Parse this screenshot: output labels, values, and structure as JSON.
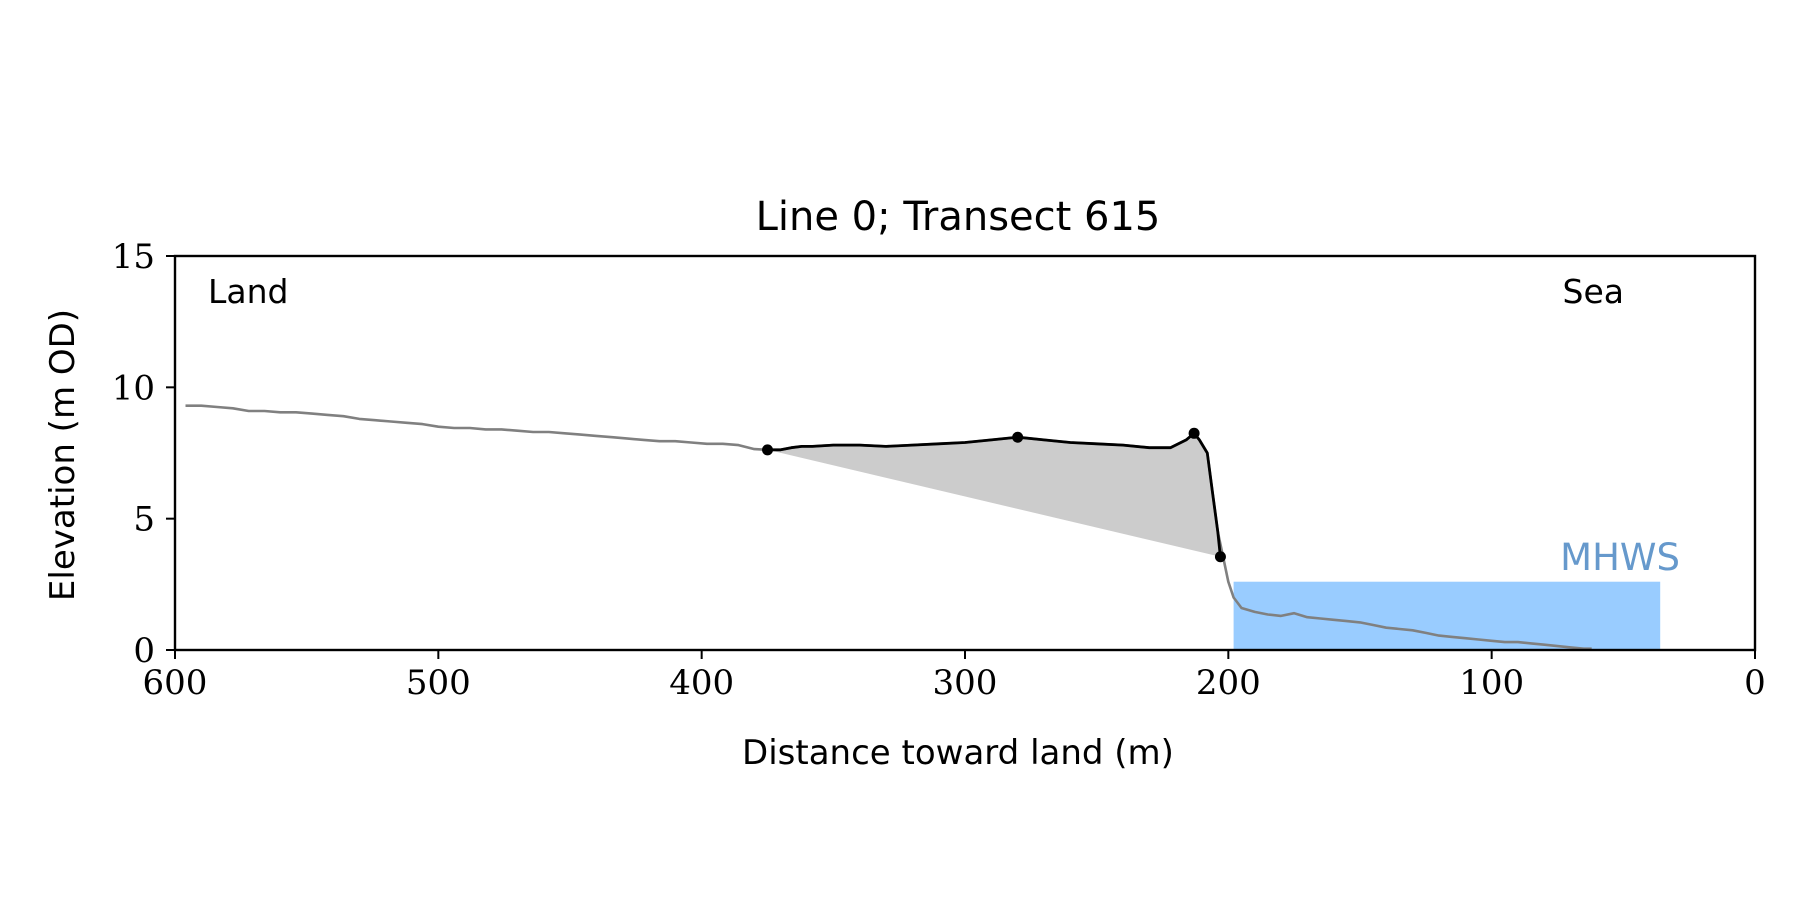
{
  "chart_data": {
    "type": "line",
    "title": "Line 0; Transect 615",
    "xlabel": "Distance toward land (m)",
    "ylabel": "Elevation (m OD)",
    "xlim": [
      600,
      0
    ],
    "ylim": [
      0,
      15
    ],
    "xticks": [
      600,
      500,
      400,
      300,
      200,
      100,
      0
    ],
    "yticks": [
      0,
      5,
      10,
      15
    ],
    "grid": false,
    "annotations": {
      "land": "Land",
      "sea": "Sea",
      "mhws": "MHWS"
    },
    "mhws": {
      "elevation": 2.6,
      "x_from": 198,
      "x_to": 36
    },
    "colors": {
      "profile": "#808080",
      "dune": "#000000",
      "dune_fill": "#cccccc",
      "mhws_fill": "#99ccff",
      "mhws_label": "#6699cc"
    },
    "series": [
      {
        "role": "full-profile",
        "x": [
          596,
          590,
          584,
          578,
          572,
          566,
          560,
          554,
          548,
          542,
          536,
          530,
          524,
          518,
          512,
          506,
          500,
          494,
          488,
          482,
          476,
          470,
          464,
          458,
          452,
          446,
          440,
          434,
          428,
          422,
          416,
          410,
          404,
          398,
          392,
          386,
          380,
          375,
          370,
          366,
          362,
          358,
          350,
          340,
          330,
          320,
          310,
          300,
          290,
          280,
          270,
          260,
          250,
          240,
          230,
          222,
          216,
          213,
          211,
          208,
          206,
          204,
          202,
          200,
          198,
          195,
          190,
          185,
          180,
          175,
          170,
          165,
          160,
          155,
          150,
          145,
          140,
          135,
          130,
          125,
          120,
          115,
          110,
          105,
          100,
          95,
          90,
          85,
          80,
          75,
          70,
          65,
          62
        ],
        "y": [
          9.3,
          9.3,
          9.25,
          9.2,
          9.1,
          9.1,
          9.05,
          9.05,
          9.0,
          8.95,
          8.9,
          8.8,
          8.75,
          8.7,
          8.65,
          8.6,
          8.5,
          8.45,
          8.45,
          8.4,
          8.4,
          8.35,
          8.3,
          8.3,
          8.25,
          8.2,
          8.15,
          8.1,
          8.05,
          8.0,
          7.95,
          7.95,
          7.9,
          7.85,
          7.85,
          7.8,
          7.65,
          7.62,
          7.62,
          7.7,
          7.75,
          7.75,
          7.8,
          7.8,
          7.75,
          7.8,
          7.85,
          7.9,
          8.0,
          8.1,
          8.0,
          7.9,
          7.85,
          7.8,
          7.7,
          7.7,
          8.0,
          8.25,
          8.0,
          7.5,
          6.0,
          4.5,
          3.55,
          2.6,
          2.0,
          1.6,
          1.45,
          1.35,
          1.3,
          1.4,
          1.25,
          1.2,
          1.15,
          1.1,
          1.05,
          0.95,
          0.85,
          0.8,
          0.75,
          0.65,
          0.55,
          0.5,
          0.45,
          0.4,
          0.35,
          0.3,
          0.3,
          0.25,
          0.2,
          0.15,
          0.1,
          0.05,
          0.05
        ]
      },
      {
        "role": "dune-profile",
        "x": [
          375,
          370,
          366,
          362,
          358,
          350,
          340,
          330,
          320,
          310,
          300,
          290,
          280,
          270,
          260,
          250,
          240,
          230,
          222,
          216,
          213,
          211,
          208,
          206,
          204,
          203
        ],
        "y": [
          7.62,
          7.62,
          7.7,
          7.75,
          7.75,
          7.8,
          7.8,
          7.75,
          7.8,
          7.85,
          7.9,
          8.0,
          8.1,
          8.0,
          7.9,
          7.85,
          7.8,
          7.7,
          7.7,
          8.0,
          8.25,
          8.0,
          7.5,
          6.0,
          4.5,
          3.55
        ]
      },
      {
        "role": "key-points",
        "x": [
          375,
          280,
          213,
          203
        ],
        "y": [
          7.62,
          8.1,
          8.25,
          3.55
        ]
      }
    ]
  }
}
